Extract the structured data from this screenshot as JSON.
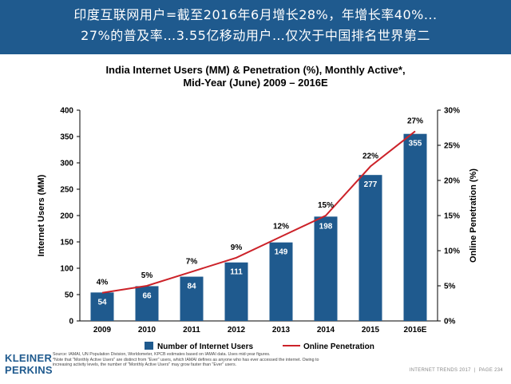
{
  "banner": {
    "line1": "印度互联网用户=截至2016年6月增长28%，年增长率40%...",
    "line2": "27%的普及率…3.55亿移动用户…仅次于中国排名世界第二"
  },
  "chart_data": {
    "type": "bar",
    "title_line1": "India Internet Users (MM) & Penetration (%), Monthly Active*,",
    "title_line2": "Mid-Year (June) 2009 – 2016E",
    "categories": [
      "2009",
      "2010",
      "2011",
      "2012",
      "2013",
      "2014",
      "2015",
      "2016E"
    ],
    "series": [
      {
        "name": "Number of Internet Users",
        "kind": "bar",
        "axis": "left",
        "values": [
          54,
          66,
          84,
          111,
          149,
          198,
          277,
          355
        ],
        "labels": [
          "54",
          "66",
          "84",
          "111",
          "149",
          "198",
          "277",
          "355"
        ]
      },
      {
        "name": "Online Penetration",
        "kind": "line",
        "axis": "right",
        "values": [
          4,
          5,
          7,
          9,
          12,
          15,
          22,
          27
        ],
        "labels": [
          "4%",
          "5%",
          "7%",
          "9%",
          "12%",
          "15%",
          "22%",
          "27%"
        ]
      }
    ],
    "ylabel_left": "Internet Users (MM)",
    "ylabel_right": "Online Penetration (%)",
    "ylim_left": [
      0,
      400
    ],
    "yticks_left": [
      "0",
      "50",
      "100",
      "150",
      "200",
      "250",
      "300",
      "350",
      "400"
    ],
    "ylim_right": [
      0,
      30
    ],
    "yticks_right": [
      "0%",
      "5%",
      "10%",
      "15%",
      "20%",
      "25%",
      "30%"
    ],
    "legend_position": "bottom",
    "grid": false,
    "colors": {
      "bar": "#1f5a8e",
      "line": "#cc2229"
    }
  },
  "footer": {
    "logo_line1": "KLEINER",
    "logo_line2": "PERKINS",
    "source": "Source: IAMAI, UN Population Division, Worldometer, KPCB estimates based on IAMAI data. Uses mid-year figures.",
    "note1": "*Note that \"Monthly Active Users\" are distinct from \"Ever\" users, which IAMAI defines as anyone who has ever accessed the internet. Owing to",
    "note2": "increasing activity levels, the number of \"Monthly Active Users\" may grow faster than \"Ever\" users.",
    "right_text": "INTERNET TRENDS 2017",
    "page": "PAGE 234"
  }
}
